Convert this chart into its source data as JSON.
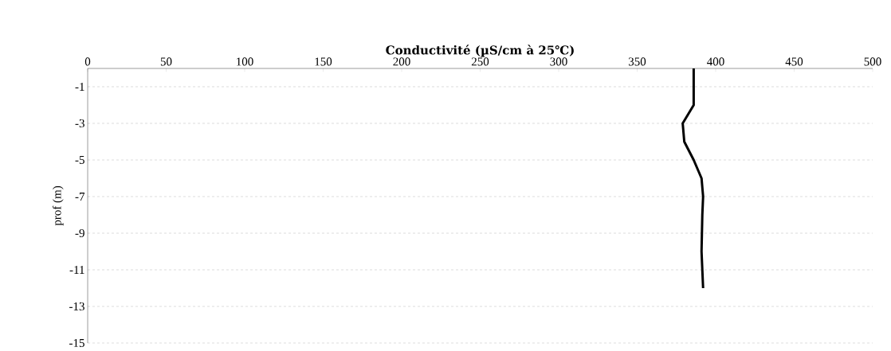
{
  "chart_data": {
    "type": "line",
    "xlabel": "Conductivité (µS/cm à 25℃)",
    "ylabel": "prof (m)",
    "x": [
      386,
      386,
      379,
      380,
      386,
      391,
      392,
      391.5,
      391,
      392
    ],
    "values": [
      0,
      -2,
      -3,
      -4,
      -5,
      -6,
      -7,
      -8,
      -10,
      -12
    ],
    "color": "#000000",
    "marker": "none",
    "line_style": "solid",
    "xlim": [
      0,
      500
    ],
    "xticks": [
      0,
      50,
      100,
      150,
      200,
      250,
      300,
      350,
      400,
      450,
      500
    ],
    "ylim": [
      -15,
      0
    ],
    "yticks": [
      -1,
      -3,
      -5,
      -7,
      -9,
      -11,
      -13,
      -15
    ],
    "grid": "y"
  }
}
